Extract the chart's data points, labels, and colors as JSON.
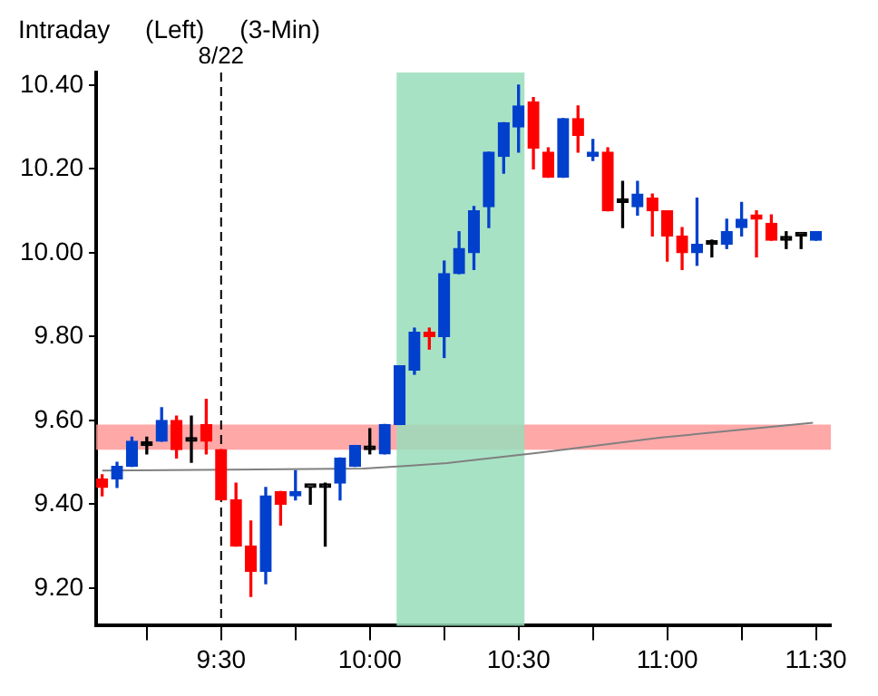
{
  "chart_data": {
    "type": "candlestick",
    "title": "Intraday     (Left)     (3-Min)",
    "x": [
      9.1,
      9.15,
      9.2,
      9.25,
      9.3,
      9.35,
      9.4,
      9.45,
      9.5,
      9.55,
      9.6,
      9.65,
      9.7,
      9.75,
      9.8,
      9.85,
      9.9,
      9.95,
      10,
      10.05,
      10.1,
      10.15,
      10.2,
      10.25,
      10.3,
      10.35,
      10.4,
      10.45,
      10.5,
      10.55,
      10.6,
      10.65,
      10.7,
      10.75,
      10.8,
      10.85,
      10.9,
      10.95,
      11,
      11.05,
      11.1,
      11.15,
      11.2,
      11.25,
      11.3,
      11.35,
      11.4,
      11.45,
      11.5
    ],
    "ohlc": [
      [
        9.46,
        9.47,
        9.42,
        9.44
      ],
      [
        9.46,
        9.5,
        9.44,
        9.49
      ],
      [
        9.49,
        9.56,
        9.49,
        9.55
      ],
      [
        9.54,
        9.56,
        9.52,
        9.54
      ],
      [
        9.55,
        9.63,
        9.55,
        9.6
      ],
      [
        9.6,
        9.61,
        9.51,
        9.53
      ],
      [
        9.55,
        9.61,
        9.5,
        9.55
      ],
      [
        9.59,
        9.65,
        9.52,
        9.55
      ],
      [
        9.53,
        9.53,
        9.41,
        9.41
      ],
      [
        9.41,
        9.45,
        9.3,
        9.3
      ],
      [
        9.3,
        9.36,
        9.18,
        9.24
      ],
      [
        9.24,
        9.44,
        9.21,
        9.42
      ],
      [
        9.43,
        9.43,
        9.35,
        9.4
      ],
      [
        9.42,
        9.48,
        9.41,
        9.43
      ],
      [
        9.44,
        9.44,
        9.4,
        9.44
      ],
      [
        9.44,
        9.45,
        9.3,
        9.44
      ],
      [
        9.45,
        9.51,
        9.41,
        9.51
      ],
      [
        9.49,
        9.54,
        9.49,
        9.54
      ],
      [
        9.53,
        9.58,
        9.52,
        9.53
      ],
      [
        9.52,
        9.59,
        9.52,
        9.59
      ],
      [
        9.59,
        9.73,
        9.59,
        9.73
      ],
      [
        9.72,
        9.82,
        9.71,
        9.81
      ],
      [
        9.81,
        9.82,
        9.77,
        9.8
      ],
      [
        9.8,
        9.98,
        9.75,
        9.95
      ],
      [
        9.95,
        10.05,
        9.95,
        10.01
      ],
      [
        10,
        10.11,
        9.96,
        10.1
      ],
      [
        10.11,
        10.24,
        10.06,
        10.24
      ],
      [
        10.23,
        10.31,
        10.19,
        10.31
      ],
      [
        10.3,
        10.4,
        10.24,
        10.35
      ],
      [
        10.36,
        10.37,
        10.2,
        10.25
      ],
      [
        10.24,
        10.25,
        10.18,
        10.18
      ],
      [
        10.18,
        10.32,
        10.18,
        10.32
      ],
      [
        10.32,
        10.35,
        10.24,
        10.28
      ],
      [
        10.23,
        10.27,
        10.22,
        10.24
      ],
      [
        10.24,
        10.25,
        10.1,
        10.1
      ],
      [
        10.12,
        10.17,
        10.06,
        10.12
      ],
      [
        10.11,
        10.17,
        10.09,
        10.14
      ],
      [
        10.13,
        10.14,
        10.04,
        10.1
      ],
      [
        10.1,
        10.1,
        9.98,
        10.04
      ],
      [
        10.04,
        10.06,
        9.96,
        10
      ],
      [
        10,
        10.13,
        9.97,
        10.02
      ],
      [
        10.02,
        10.03,
        9.99,
        10.02
      ],
      [
        10.02,
        10.08,
        10.01,
        10.05
      ],
      [
        10.06,
        10.12,
        10.04,
        10.08
      ],
      [
        10.09,
        10.1,
        9.99,
        10.08
      ],
      [
        10.07,
        10.09,
        10.03,
        10.03
      ],
      [
        10.03,
        10.05,
        10.01,
        10.03
      ],
      [
        10.04,
        10.04,
        10.01,
        10.04
      ],
      [
        10.03,
        10.05,
        10.03,
        10.05
      ]
    ],
    "colors": [
      "#ff0000",
      "#0040cc",
      "#0040cc",
      "#000000",
      "#0040cc",
      "#ff0000",
      "#000000",
      "#ff0000",
      "#ff0000",
      "#ff0000",
      "#ff0000",
      "#0040cc",
      "#ff0000",
      "#0040cc",
      "#000000",
      "#000000",
      "#0040cc",
      "#0040cc",
      "#000000",
      "#0040cc",
      "#0040cc",
      "#0040cc",
      "#ff0000",
      "#0040cc",
      "#0040cc",
      "#0040cc",
      "#0040cc",
      "#0040cc",
      "#0040cc",
      "#ff0000",
      "#ff0000",
      "#0040cc",
      "#ff0000",
      "#0040cc",
      "#ff0000",
      "#000000",
      "#0040cc",
      "#ff0000",
      "#ff0000",
      "#ff0000",
      "#0040cc",
      "#000000",
      "#0040cc",
      "#0040cc",
      "#ff0000",
      "#ff0000",
      "#000000",
      "#000000",
      "#0040cc"
    ],
    "series": [
      {
        "type": "line",
        "color": "#808080",
        "x": [
          9.1,
          9.98,
          10.14,
          10.26,
          10.57,
          10.98,
          11.49
        ],
        "values": [
          9.48,
          9.485,
          9.492,
          9.498,
          9.523,
          9.559,
          9.594
        ]
      }
    ],
    "xlim": [
      9.08,
      11.55
    ],
    "xticks": [
      {
        "value": 9.25,
        "label": null
      },
      {
        "value": 9.5,
        "label": "9:30"
      },
      {
        "value": 9.75,
        "label": null
      },
      {
        "value": 10,
        "label": "10:00"
      },
      {
        "value": 10.25,
        "label": null
      },
      {
        "value": 10.5,
        "label": "10:30"
      },
      {
        "value": 10.75,
        "label": null
      },
      {
        "value": 11,
        "label": "11:00"
      },
      {
        "value": 11.25,
        "label": null
      },
      {
        "value": 11.5,
        "label": "11:30"
      }
    ],
    "ylim": [
      9.11,
      10.43
    ],
    "yticks": [
      {
        "value": 9.2,
        "label": "9.20"
      },
      {
        "value": 9.4,
        "label": "9.40"
      },
      {
        "value": 9.6,
        "label": "9.60"
      },
      {
        "value": 9.8,
        "label": "9.80"
      },
      {
        "value": 10,
        "label": "10.00"
      },
      {
        "value": 10.2,
        "label": "10.20"
      },
      {
        "value": 10.4,
        "label": "10.40"
      }
    ],
    "ref_lines": [
      {
        "axis": "x",
        "value": 9.5,
        "line_style": "dashed",
        "color": "#000000"
      }
    ],
    "annotations": [
      {
        "text": "8/22",
        "x": 9.5,
        "y": 10.43
      }
    ],
    "bands": [
      {
        "axis": "y",
        "from": 9.53,
        "to": 9.59,
        "color": "#ff9999"
      },
      {
        "axis": "x",
        "from": 10.09,
        "to": 10.52,
        "color": "#99ddbb"
      }
    ],
    "legend": false,
    "grid": false
  }
}
